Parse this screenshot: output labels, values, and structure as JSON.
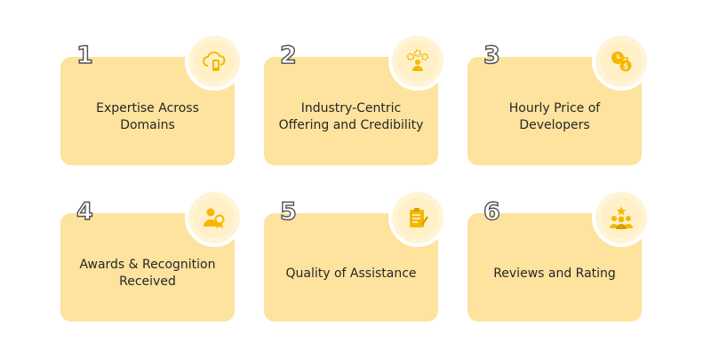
{
  "colors": {
    "card": "#fde39e",
    "badge": "#fff0c7",
    "icon": "#f5b800",
    "number_outline": "#505050"
  },
  "cards": [
    {
      "number": "1",
      "title": "Expertise Across Domains",
      "icon": "cloud-device-icon"
    },
    {
      "number": "2",
      "title": "Industry-Centric Offering and Credibility",
      "icon": "team-settings-icon"
    },
    {
      "number": "3",
      "title": "Hourly Price of Developers",
      "icon": "clock-dollar-icon"
    },
    {
      "number": "4",
      "title": "Awards & Recognition Received",
      "icon": "person-award-icon"
    },
    {
      "number": "5",
      "title": "Quality of Assistance",
      "icon": "clipboard-checklist-icon"
    },
    {
      "number": "6",
      "title": "Reviews and Rating",
      "icon": "group-star-icon"
    }
  ]
}
